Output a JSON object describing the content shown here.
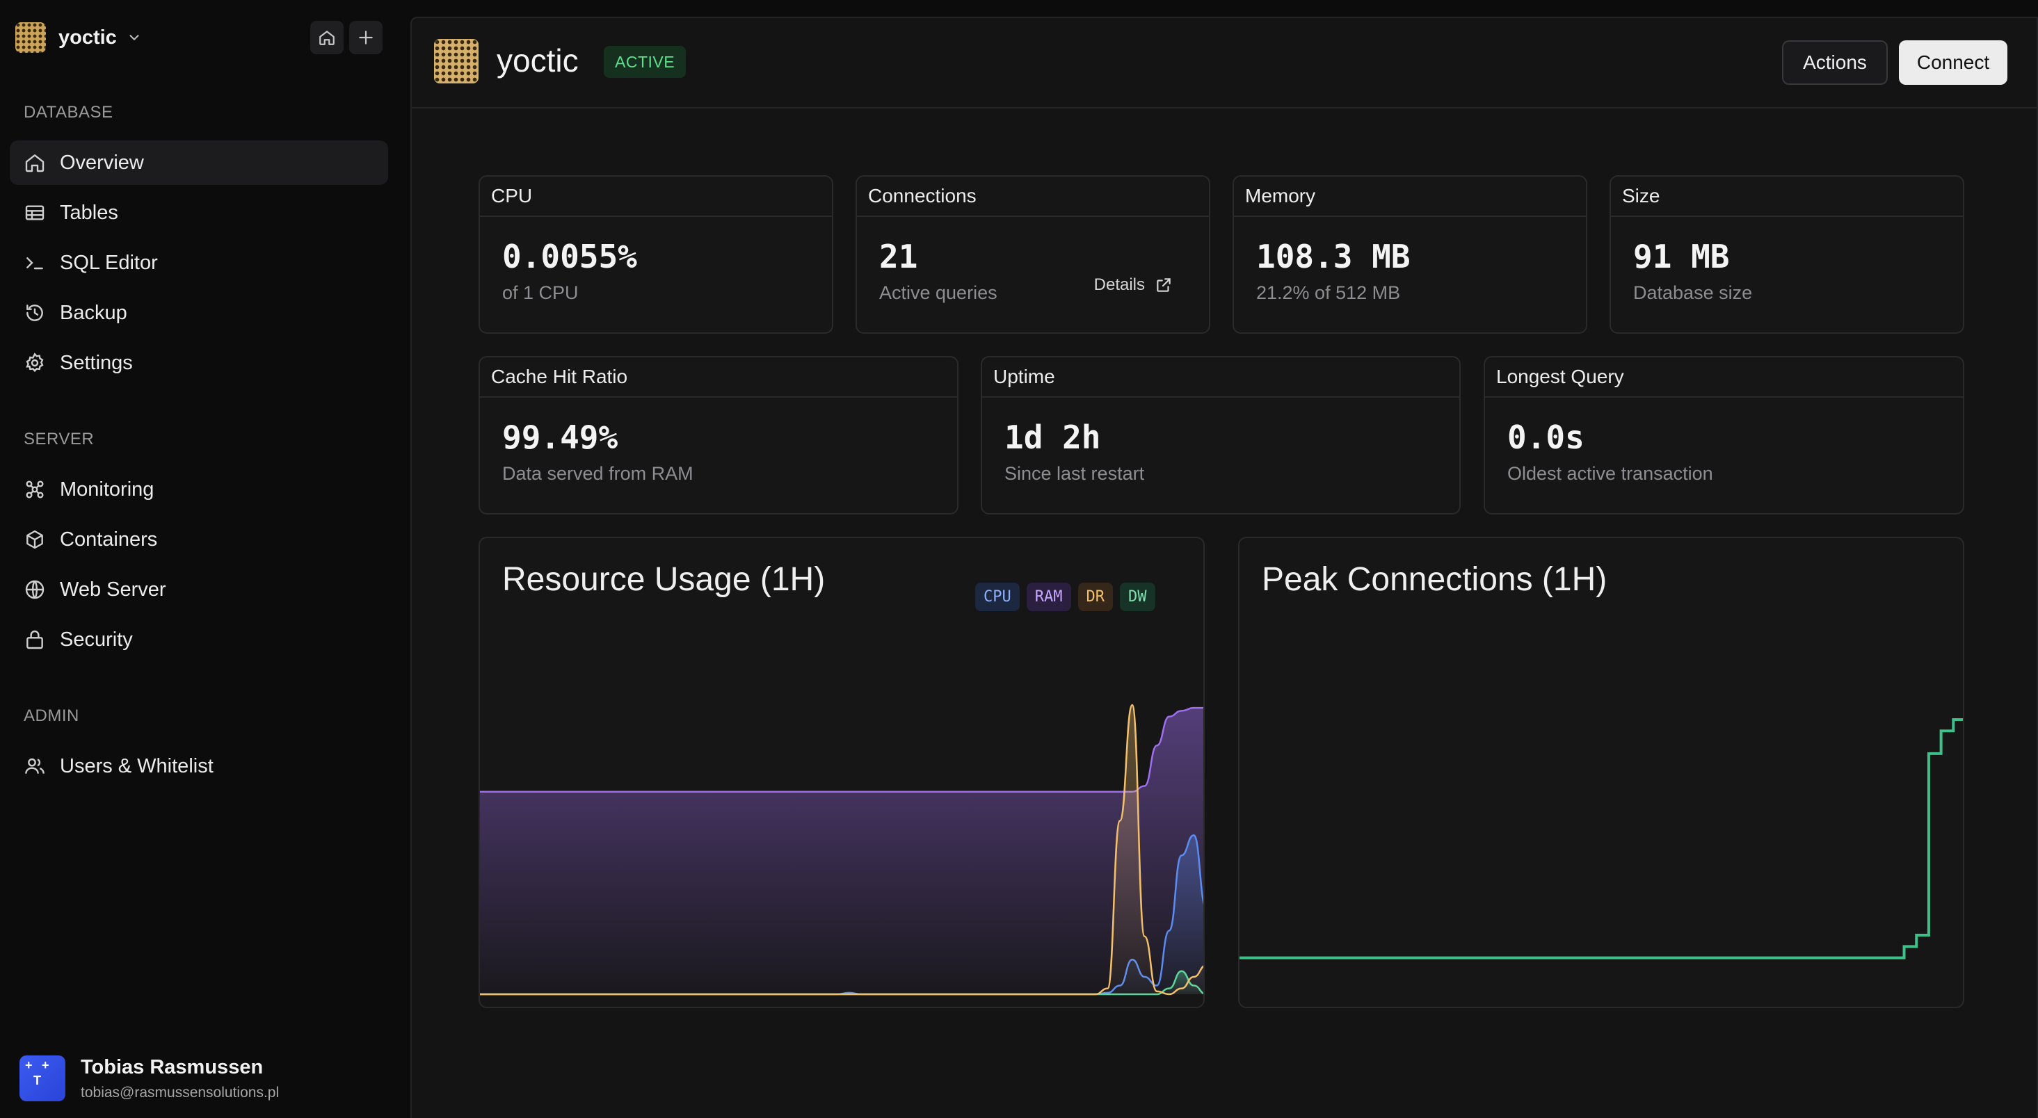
{
  "workspace": {
    "name": "yoctic",
    "logo_icon": "dither-logo"
  },
  "sidebar": {
    "sections": [
      {
        "label": "DATABASE"
      },
      {
        "label": "SERVER"
      },
      {
        "label": "ADMIN"
      }
    ],
    "items": [
      {
        "label": "Overview",
        "icon": "home-icon",
        "active": true
      },
      {
        "label": "Tables",
        "icon": "table-icon"
      },
      {
        "label": "SQL Editor",
        "icon": "terminal-icon"
      },
      {
        "label": "Backup",
        "icon": "history-icon"
      },
      {
        "label": "Settings",
        "icon": "gear-icon"
      },
      {
        "label": "Monitoring",
        "icon": "network-icon"
      },
      {
        "label": "Containers",
        "icon": "box-icon"
      },
      {
        "label": "Web Server",
        "icon": "globe-icon"
      },
      {
        "label": "Security",
        "icon": "lock-icon"
      },
      {
        "label": "Users & Whitelist",
        "icon": "users-icon"
      }
    ]
  },
  "user": {
    "name": "Tobias Rasmussen",
    "email": "tobias@rasmussensolutions.pl"
  },
  "header": {
    "title": "yoctic",
    "status": "ACTIVE",
    "actions_label": "Actions",
    "connect_label": "Connect"
  },
  "stats": {
    "cpu": {
      "title": "CPU",
      "value": "0.0055%",
      "sub": "of 1 CPU"
    },
    "connections": {
      "title": "Connections",
      "value": "21",
      "sub": "Active queries",
      "link": "Details"
    },
    "memory": {
      "title": "Memory",
      "value": "108.3 MB",
      "sub": "21.2% of 512 MB"
    },
    "size": {
      "title": "Size",
      "value": "91 MB",
      "sub": "Database size"
    },
    "cache": {
      "title": "Cache Hit Ratio",
      "value": "99.49%",
      "sub": "Data served from RAM"
    },
    "uptime": {
      "title": "Uptime",
      "value": "1d 2h",
      "sub": "Since last restart"
    },
    "longest": {
      "title": "Longest Query",
      "value": "0.0s",
      "sub": "Oldest active transaction"
    }
  },
  "colors": {
    "cpu": "#5b8cf2",
    "ram": "#a06ff0",
    "dr": "#f2c06b",
    "dw": "#5fd49a",
    "connections": "#3fbf8a"
  },
  "chart_data": [
    {
      "type": "area",
      "title": "Resource Usage (1H)",
      "legend": "top-right",
      "grid": false,
      "x_count": 60,
      "series": [
        {
          "name": "CPU",
          "values": [
            0,
            0,
            0,
            0,
            0,
            0,
            0,
            0,
            0,
            0,
            0,
            0,
            0,
            0,
            0,
            0,
            0,
            0,
            0,
            0,
            0,
            0,
            0,
            0,
            0,
            0,
            0,
            0,
            0,
            0,
            0.5,
            0,
            0,
            0,
            0,
            0,
            0,
            0,
            0,
            0,
            0,
            0,
            0,
            0,
            0,
            0,
            0,
            0,
            0,
            0,
            0,
            0.5,
            3,
            12,
            6,
            3,
            22,
            48,
            55,
            30
          ]
        },
        {
          "name": "RAM",
          "values": [
            70,
            70,
            70,
            70,
            70,
            70,
            70,
            70,
            70,
            70,
            70,
            70,
            70,
            70,
            70,
            70,
            70,
            70,
            70,
            70,
            70,
            70,
            70,
            70,
            70,
            70,
            70,
            70,
            70,
            70,
            70,
            70,
            70,
            70,
            70,
            70,
            70,
            70,
            70,
            70,
            70,
            70,
            70,
            70,
            70,
            70,
            70,
            70,
            70,
            70,
            70,
            70,
            70,
            70,
            72,
            86,
            96,
            98,
            99,
            99
          ]
        },
        {
          "name": "DR",
          "values": [
            0,
            0,
            0,
            0,
            0,
            0,
            0,
            0,
            0,
            0,
            0,
            0,
            0,
            0,
            0,
            0,
            0,
            0,
            0,
            0,
            0,
            0,
            0,
            0,
            0,
            0,
            0,
            0,
            0,
            0,
            0,
            0,
            0,
            0,
            0,
            0,
            0,
            0,
            0,
            0,
            0,
            0,
            0,
            0,
            0,
            0,
            0,
            0,
            0,
            0,
            0,
            2,
            60,
            100,
            20,
            1,
            0,
            2,
            6,
            10
          ]
        },
        {
          "name": "DW",
          "values": [
            0,
            0,
            0,
            0,
            0,
            0,
            0,
            0,
            0,
            0,
            0,
            0,
            0,
            0,
            0,
            0,
            0,
            0,
            0,
            0,
            0,
            0,
            0,
            0,
            0,
            0,
            0,
            0,
            0,
            0,
            0,
            0,
            0,
            0,
            0,
            0,
            0,
            0,
            0,
            0,
            0,
            0,
            0,
            0,
            0,
            0,
            0,
            0,
            0,
            0,
            0,
            0,
            0,
            0,
            0,
            0,
            2,
            8,
            3,
            0
          ]
        }
      ],
      "ylim": [
        0,
        100
      ]
    },
    {
      "type": "line",
      "title": "Peak Connections (1H)",
      "step": true,
      "x_count": 60,
      "series": [
        {
          "name": "",
          "values": [
            1,
            1,
            1,
            1,
            1,
            1,
            1,
            1,
            1,
            1,
            1,
            1,
            1,
            1,
            1,
            1,
            1,
            1,
            1,
            1,
            1,
            1,
            1,
            1,
            1,
            1,
            1,
            1,
            1,
            1,
            1,
            1,
            1,
            1,
            1,
            1,
            1,
            1,
            1,
            1,
            1,
            1,
            1,
            1,
            1,
            1,
            1,
            1,
            1,
            1,
            1,
            1,
            1,
            1,
            2,
            3,
            19,
            21,
            22,
            22
          ]
        }
      ],
      "ylim": [
        0,
        25
      ]
    }
  ]
}
